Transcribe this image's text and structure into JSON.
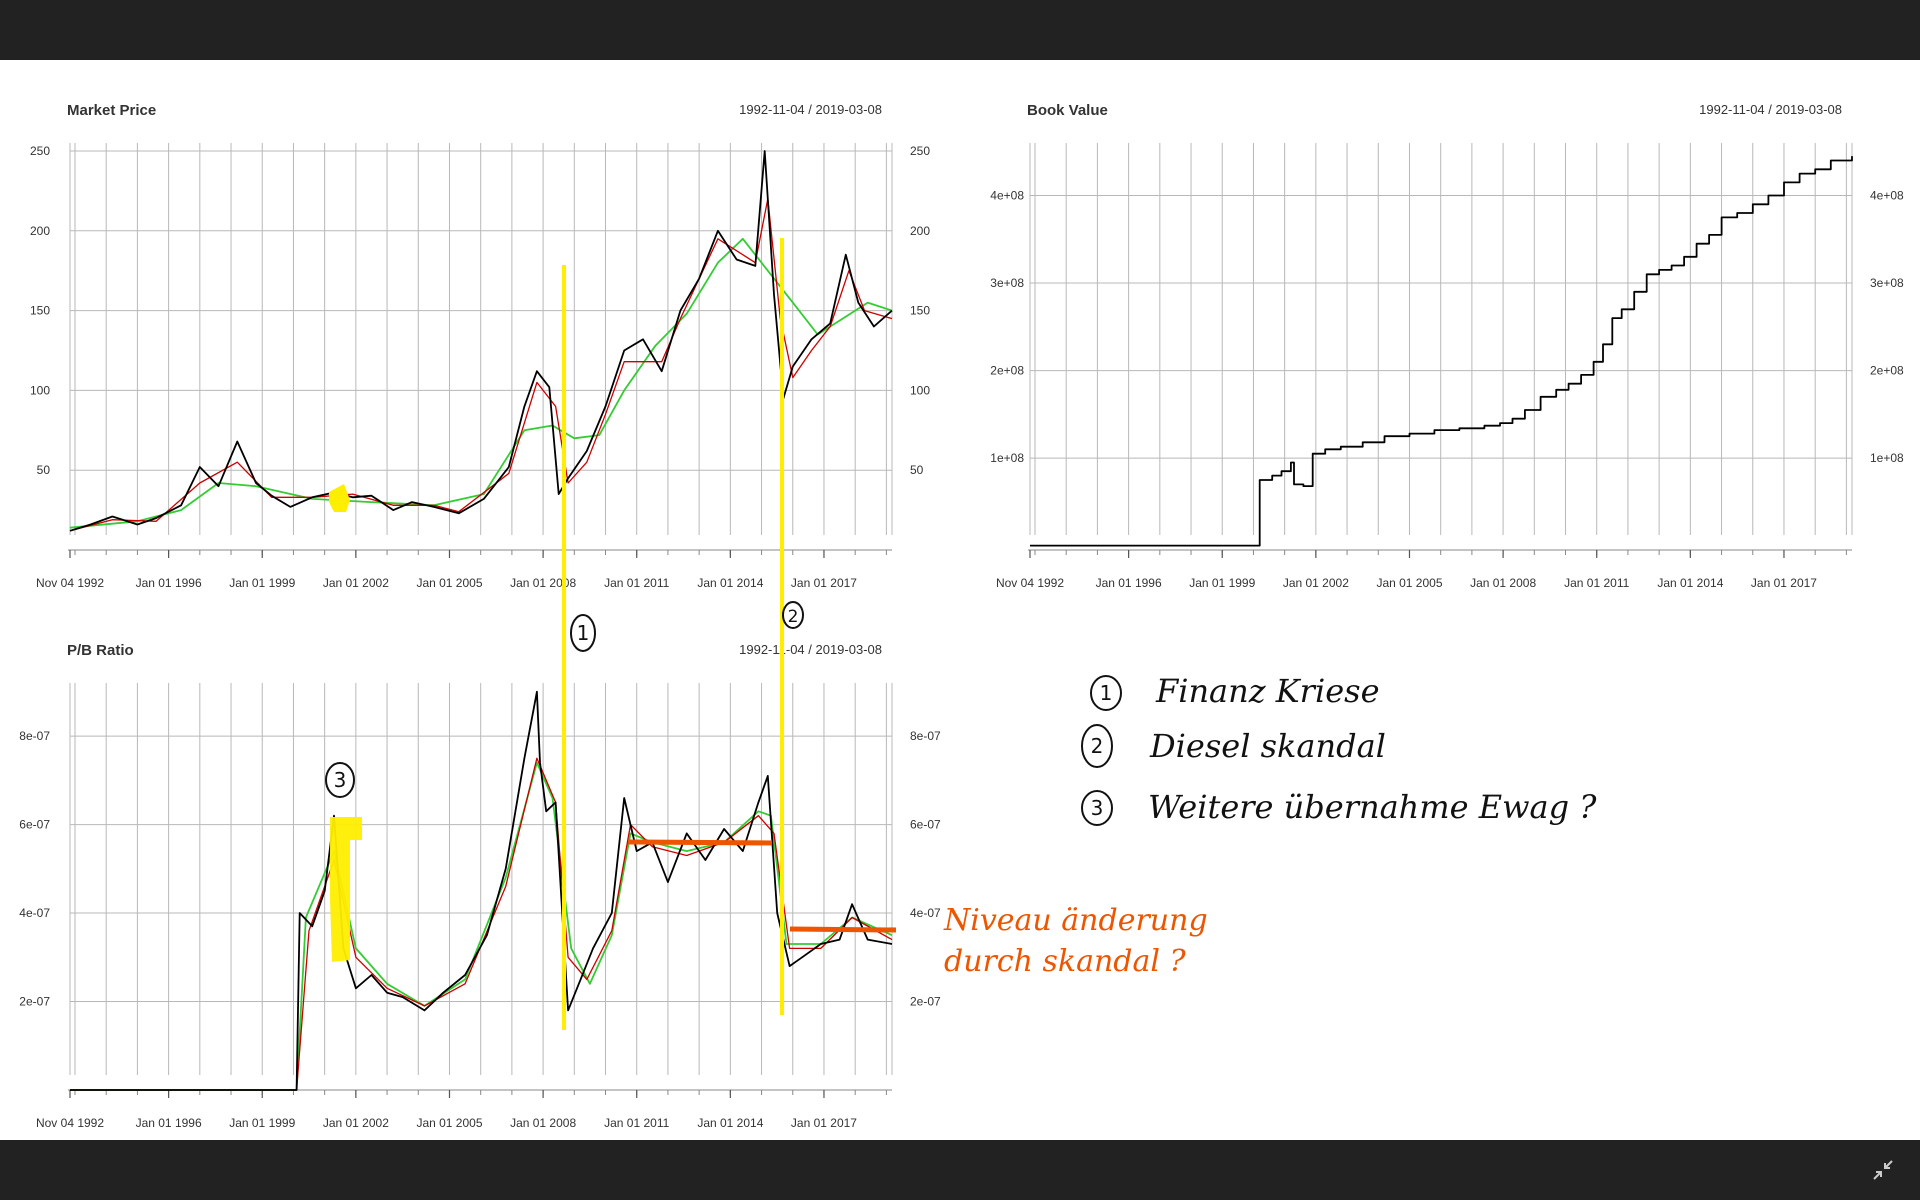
{
  "colors": {
    "price_line": "#000000",
    "ma_short": "#cc0000",
    "ma_long": "#33cc33",
    "highlight_yellow": "#ffee00",
    "annotation_orange": "#ee5500",
    "annotation_black": "#111111",
    "grid": "#b8b8b8",
    "chrome": "#222222"
  },
  "icons": {
    "collapse": "collapse-arrows-icon"
  },
  "chart_data": [
    {
      "id": "market",
      "type": "line",
      "title": "Market Price",
      "date_range": "1992-11-04 / 2019-03-08",
      "x_tick_labels": [
        "Nov 04 1992",
        "Jan 01 1996",
        "Jan 01 1999",
        "Jan 01 2002",
        "Jan 01 2005",
        "Jan 01 2008",
        "Jan 01 2011",
        "Jan 01 2014",
        "Jan 01 2017"
      ],
      "x_tick_years": [
        1992.84,
        1996.0,
        1999.0,
        2002.0,
        2005.0,
        2008.0,
        2011.0,
        2014.0,
        2017.0
      ],
      "xlim": [
        1992.84,
        2019.18
      ],
      "ylim": [
        0,
        255
      ],
      "y_ticks": [
        50,
        100,
        150,
        200,
        250
      ],
      "y_tick_labels": [
        "50",
        "100",
        "150",
        "200",
        "250"
      ],
      "grid": true,
      "series": [
        {
          "role": "price",
          "x": [
            1992.84,
            1993.5,
            1994.2,
            1995.0,
            1995.6,
            1996.4,
            1997.0,
            1997.6,
            1998.2,
            1998.8,
            1999.3,
            1999.9,
            2000.6,
            2001.3,
            2001.9,
            2002.5,
            2003.2,
            2003.8,
            2004.5,
            2005.3,
            2006.1,
            2006.9,
            2007.4,
            2007.8,
            2008.2,
            2008.5,
            2008.8,
            2009.4,
            2010.0,
            2010.6,
            2011.2,
            2011.8,
            2012.4,
            2013.0,
            2013.6,
            2014.2,
            2014.8,
            2015.1,
            2015.4,
            2015.7,
            2016.0,
            2016.6,
            2017.2,
            2017.7,
            2018.1,
            2018.6,
            2019.18
          ],
          "y": [
            12,
            16,
            21,
            16,
            20,
            28,
            52,
            40,
            68,
            42,
            34,
            27,
            33,
            36,
            33,
            34,
            25,
            30,
            27,
            23,
            32,
            52,
            90,
            112,
            102,
            35,
            45,
            62,
            90,
            125,
            132,
            112,
            150,
            170,
            200,
            182,
            178,
            250,
            160,
            95,
            115,
            132,
            142,
            185,
            155,
            140,
            150
          ]
        },
        {
          "role": "ma_short",
          "x": [
            1992.84,
            1994.2,
            1995.6,
            1997.0,
            1998.2,
            1999.3,
            2000.6,
            2001.9,
            2003.2,
            2004.5,
            2005.3,
            2006.9,
            2007.8,
            2008.4,
            2008.8,
            2009.4,
            2010.0,
            2010.6,
            2011.8,
            2012.4,
            2013.6,
            2014.8,
            2015.2,
            2015.6,
            2016.0,
            2016.6,
            2017.2,
            2017.8,
            2018.3,
            2019.18
          ],
          "y": [
            12,
            19,
            18,
            42,
            55,
            33,
            33,
            35,
            28,
            28,
            24,
            48,
            105,
            90,
            42,
            55,
            85,
            118,
            118,
            145,
            195,
            180,
            220,
            145,
            108,
            125,
            140,
            175,
            150,
            145
          ]
        },
        {
          "role": "ma_long",
          "x": [
            1992.84,
            1995.0,
            1996.4,
            1997.6,
            1998.8,
            2000.6,
            2002.5,
            2004.5,
            2006.1,
            2007.4,
            2008.3,
            2009.0,
            2009.8,
            2010.6,
            2011.6,
            2012.6,
            2013.6,
            2014.4,
            2015.2,
            2016.0,
            2016.8,
            2017.6,
            2018.4,
            2019.18
          ],
          "y": [
            14,
            18,
            25,
            42,
            40,
            32,
            30,
            28,
            35,
            75,
            78,
            70,
            72,
            100,
            128,
            148,
            180,
            195,
            175,
            155,
            135,
            145,
            155,
            150
          ]
        }
      ]
    },
    {
      "id": "book",
      "type": "line",
      "title": "Book Value",
      "date_range": "1992-11-04 / 2019-03-08",
      "x_tick_labels": [
        "Nov 04 1992",
        "Jan 01 1996",
        "Jan 01 1999",
        "Jan 01 2002",
        "Jan 01 2005",
        "Jan 01 2008",
        "Jan 01 2011",
        "Jan 01 2014",
        "Jan 01 2017"
      ],
      "x_tick_years": [
        1992.84,
        1996.0,
        1999.0,
        2002.0,
        2005.0,
        2008.0,
        2011.0,
        2014.0,
        2017.0
      ],
      "xlim": [
        1992.84,
        2019.18
      ],
      "ylim": [
        -5000000,
        460000000
      ],
      "y_ticks": [
        100000000,
        200000000,
        300000000,
        400000000
      ],
      "y_tick_labels": [
        "1e+08",
        "2e+08",
        "3e+08",
        "4e+08"
      ],
      "grid": true,
      "series": [
        {
          "role": "price",
          "step": true,
          "x": [
            1992.84,
            2000.2,
            2000.6,
            2000.9,
            2001.2,
            2001.3,
            2001.6,
            2001.9,
            2002.3,
            2002.8,
            2003.5,
            2004.2,
            2005.0,
            2005.8,
            2006.6,
            2007.4,
            2007.9,
            2008.3,
            2008.7,
            2009.2,
            2009.7,
            2010.1,
            2010.5,
            2010.9,
            2011.2,
            2011.5,
            2011.8,
            2012.2,
            2012.6,
            2013.0,
            2013.4,
            2013.8,
            2014.2,
            2014.6,
            2015.0,
            2015.5,
            2016.0,
            2016.5,
            2017.0,
            2017.5,
            2018.0,
            2018.5,
            2019.18
          ],
          "y": [
            0,
            75000000,
            80000000,
            85000000,
            95000000,
            70000000,
            68000000,
            105000000,
            110000000,
            113000000,
            118000000,
            125000000,
            128000000,
            132000000,
            134000000,
            137000000,
            140000000,
            145000000,
            155000000,
            170000000,
            178000000,
            185000000,
            195000000,
            210000000,
            230000000,
            260000000,
            270000000,
            290000000,
            310000000,
            315000000,
            320000000,
            330000000,
            345000000,
            355000000,
            375000000,
            380000000,
            390000000,
            400000000,
            415000000,
            425000000,
            430000000,
            440000000,
            445000000
          ]
        }
      ]
    },
    {
      "id": "pb",
      "type": "line",
      "title": "P/B Ratio",
      "date_range": "1992-11-04 / 2019-03-08",
      "x_tick_labels": [
        "Nov 04 1992",
        "Jan 01 1996",
        "Jan 01 1999",
        "Jan 01 2002",
        "Jan 01 2005",
        "Jan 01 2008",
        "Jan 01 2011",
        "Jan 01 2014",
        "Jan 01 2017"
      ],
      "x_tick_years": [
        1992.84,
        1996.0,
        1999.0,
        2002.0,
        2005.0,
        2008.0,
        2011.0,
        2014.0,
        2017.0
      ],
      "xlim": [
        1992.84,
        2019.18
      ],
      "ylim": [
        0,
        9.2e-07
      ],
      "y_ticks": [
        2e-07,
        4e-07,
        6e-07,
        8e-07
      ],
      "y_tick_labels": [
        "2e-07",
        "4e-07",
        "6e-07",
        "8e-07"
      ],
      "grid": true,
      "series": [
        {
          "role": "price",
          "x": [
            1992.84,
            2000.1,
            2000.2,
            2000.6,
            2001.0,
            2001.3,
            2001.6,
            2002.0,
            2002.5,
            2003.0,
            2003.5,
            2004.2,
            2004.8,
            2005.5,
            2006.2,
            2006.8,
            2007.4,
            2007.8,
            2007.9,
            2008.1,
            2008.4,
            2008.8,
            2009.2,
            2009.6,
            2010.2,
            2010.6,
            2011.0,
            2011.5,
            2012.0,
            2012.6,
            2013.2,
            2013.8,
            2014.4,
            2014.9,
            2015.2,
            2015.5,
            2015.9,
            2016.3,
            2016.9,
            2017.5,
            2017.9,
            2018.4,
            2019.18
          ],
          "y": [
            0,
            0,
            4e-07,
            3.7e-07,
            4.5e-07,
            6.2e-07,
            3.2e-07,
            2.3e-07,
            2.6e-07,
            2.2e-07,
            2.1e-07,
            1.8e-07,
            2.2e-07,
            2.6e-07,
            3.5e-07,
            5e-07,
            7.5e-07,
            9e-07,
            7.4e-07,
            6.3e-07,
            6.5e-07,
            1.8e-07,
            2.5e-07,
            3.2e-07,
            4e-07,
            6.6e-07,
            5.4e-07,
            5.6e-07,
            4.7e-07,
            5.8e-07,
            5.2e-07,
            5.9e-07,
            5.4e-07,
            6.5e-07,
            7.1e-07,
            4e-07,
            2.8e-07,
            3e-07,
            3.3e-07,
            3.4e-07,
            4.2e-07,
            3.4e-07,
            3.3e-07
          ]
        },
        {
          "role": "ma_short",
          "x": [
            1992.84,
            2000.1,
            2000.5,
            2001.3,
            2002.0,
            2003.0,
            2004.2,
            2005.5,
            2006.8,
            2007.8,
            2008.4,
            2008.8,
            2009.4,
            2010.2,
            2010.8,
            2011.5,
            2012.6,
            2013.8,
            2014.9,
            2015.4,
            2015.9,
            2016.9,
            2017.9,
            2019.18
          ],
          "y": [
            0,
            0,
            3.6e-07,
            5.2e-07,
            3e-07,
            2.3e-07,
            1.9e-07,
            2.4e-07,
            4.6e-07,
            7.5e-07,
            6.5e-07,
            3e-07,
            2.5e-07,
            3.6e-07,
            6e-07,
            5.5e-07,
            5.3e-07,
            5.6e-07,
            6.2e-07,
            5.8e-07,
            3.2e-07,
            3.2e-07,
            3.9e-07,
            3.4e-07
          ]
        },
        {
          "role": "ma_long",
          "x": [
            1992.84,
            2000.1,
            2000.4,
            2001.3,
            2002.0,
            2003.0,
            2004.2,
            2005.5,
            2006.8,
            2007.8,
            2008.3,
            2008.9,
            2009.5,
            2010.2,
            2010.8,
            2011.5,
            2012.6,
            2013.8,
            2014.9,
            2015.3,
            2015.8,
            2016.9,
            2017.9,
            2019.18
          ],
          "y": [
            0,
            0,
            3.9e-07,
            5.4e-07,
            3.2e-07,
            2.4e-07,
            1.9e-07,
            2.5e-07,
            4.8e-07,
            7.4e-07,
            6.6e-07,
            3.2e-07,
            2.4e-07,
            3.5e-07,
            5.8e-07,
            5.6e-07,
            5.4e-07,
            5.6e-07,
            6.3e-07,
            6.2e-07,
            3.3e-07,
            3.3e-07,
            3.9e-07,
            3.5e-07
          ]
        }
      ]
    }
  ],
  "annotations": {
    "legend": [
      {
        "number": "1",
        "text": "Finanz Kriese"
      },
      {
        "number": "2",
        "text": "Diesel skandal"
      },
      {
        "number": "3",
        "text": "Weitere übernahme Ewag ?"
      }
    ],
    "side_note": [
      "Niveau änderung",
      "durch skandal ?"
    ],
    "markers": [
      "1",
      "2",
      "3"
    ]
  }
}
